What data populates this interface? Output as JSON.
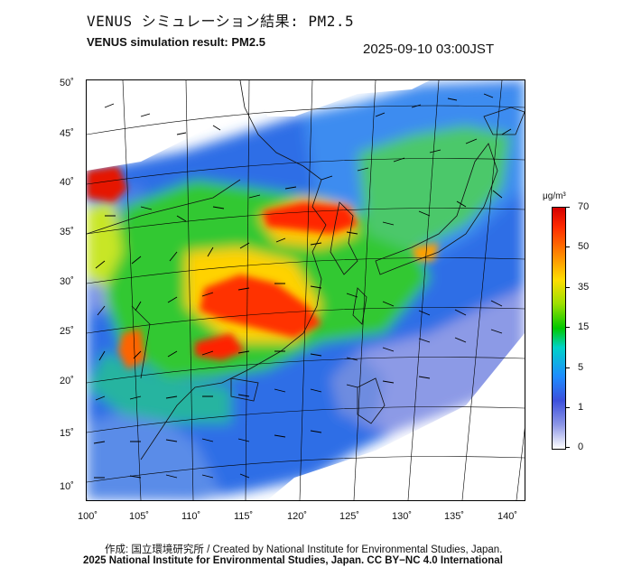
{
  "header": {
    "title_jp": "VENUS シミュレーション結果: PM2.5",
    "title_en": "VENUS simulation result: PM2.5",
    "timestamp": "2025-09-10 03:00JST"
  },
  "map": {
    "lon_labels": [
      "100˚",
      "105˚",
      "110˚",
      "115˚",
      "120˚",
      "125˚",
      "130˚",
      "135˚",
      "140˚"
    ],
    "lat_labels": [
      "50˚",
      "45˚",
      "40˚",
      "35˚",
      "30˚",
      "25˚",
      "20˚",
      "15˚",
      "10˚"
    ]
  },
  "colorbar": {
    "unit": "μg/m³",
    "ticks": [
      "70",
      "50",
      "35",
      "15",
      "5",
      "1",
      "0"
    ],
    "colors": [
      "#d40000",
      "#ff8c00",
      "#ffdd00",
      "#00c800",
      "#00d2c8",
      "#1e8cff",
      "#8c96e6",
      "#ffffff"
    ]
  },
  "footer": {
    "credit": "作成: 国立環境研究所 / Created by National Institute for Environmental Studies, Japan.",
    "copyright": "2025 National Institute for Environmental Studies, Japan. CC BY−NC 4.0 International"
  }
}
